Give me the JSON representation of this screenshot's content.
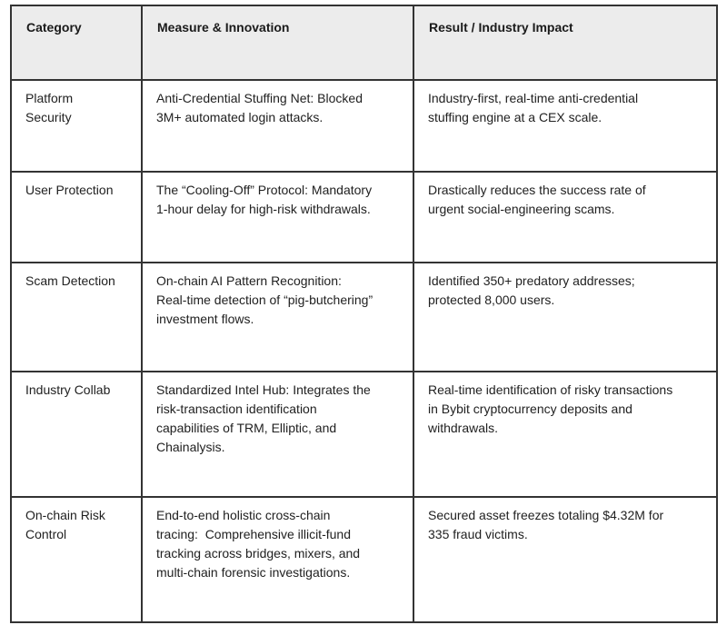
{
  "table": {
    "headers": [
      "Category",
      "Measure & Innovation",
      "Result / Industry Impact"
    ],
    "rows": [
      {
        "category": "Platform\nSecurity",
        "measure": "Anti-Credential Stuffing Net: Blocked\n3M+ automated login attacks.",
        "result": "Industry-first, real-time anti-credential\nstuffing engine at a CEX scale."
      },
      {
        "category": "User Protection",
        "measure": "The “Cooling-Off” Protocol: Mandatory\n1-hour delay for high-risk withdrawals.",
        "result": "Drastically reduces the success rate of\nurgent social-engineering scams."
      },
      {
        "category": "Scam Detection",
        "measure": "On-chain AI Pattern Recognition:\nReal-time detection of “pig-butchering”\ninvestment flows.",
        "result": "Identified 350+ predatory addresses;\nprotected 8,000 users."
      },
      {
        "category": "Industry Collab",
        "measure": "Standardized Intel Hub: Integrates the\nrisk-transaction identification\ncapabilities of TRM, Elliptic, and\nChainalysis.",
        "result": "Real-time identification of risky transactions\nin Bybit cryptocurrency deposits and\nwithdrawals."
      },
      {
        "category": "On-chain Risk\nControl",
        "measure": "End-to-end holistic cross-chain\ntracing:  Comprehensive illicit-fund\ntracking across bridges, mixers, and\nmulti-chain forensic investigations.",
        "result": "Secured asset freezes totaling $4.32M for\n335 fraud victims."
      }
    ]
  },
  "colors": {
    "header_background": "#ececec",
    "border": "#333333",
    "text": "#212121",
    "body_background": "#ffffff"
  }
}
